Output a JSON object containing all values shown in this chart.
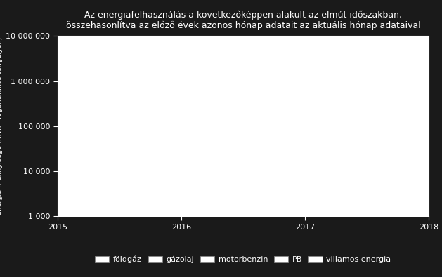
{
  "title_line1": "Az energiafelhasználás a következőképpen alakult az elmút időszakban,",
  "title_line2": "összehasonlítva az előző évek azonos hónap adatait az aktuális hónap adataival",
  "xlim": [
    2015.0,
    2018.0
  ],
  "ylim_min": 1000,
  "ylim_max": 10000000,
  "xticks": [
    2015,
    2016,
    2017,
    2018
  ],
  "yticks": [
    1000,
    10000,
    100000,
    1000000,
    10000000
  ],
  "ytick_labels": [
    "1 000",
    "10 000",
    "100 000",
    "1 000 000",
    "10 000 000"
  ],
  "background_color": "#1a1a1a",
  "plot_bg_color": "#ffffff",
  "text_color": "#ffffff",
  "legend_entries": [
    "földgáz",
    "gázolaj",
    "motorbenzin",
    "PB",
    "villamos energia"
  ],
  "legend_colors": [
    "#ffffff",
    "#ffffff",
    "#ffffff",
    "#ffffff",
    "#ffffff"
  ],
  "title_fontsize": 9,
  "ylabel_fontsize": 7,
  "tick_fontsize": 8,
  "legend_fontsize": 8
}
